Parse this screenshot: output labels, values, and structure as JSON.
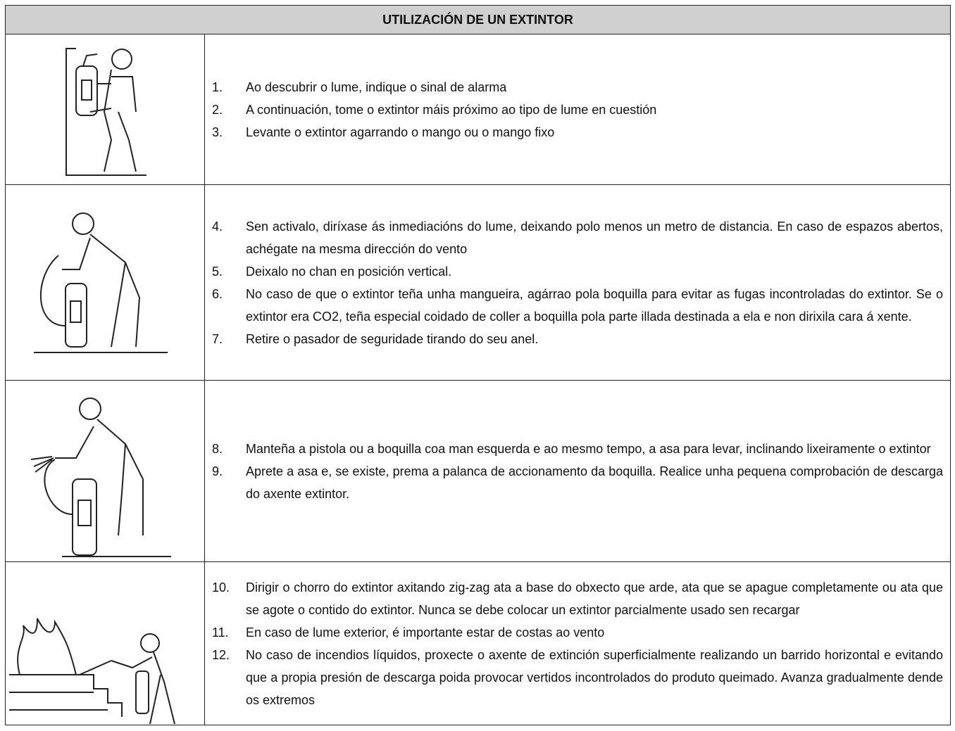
{
  "header": {
    "title": "UTILIZACIÓN DE UN EXTINTOR"
  },
  "rows": [
    {
      "items": [
        {
          "number": "1.",
          "text": "Ao descubrir o lume, indique o sinal de alarma"
        },
        {
          "number": "2.",
          "text": "A continuación, tome o extintor máis próximo ao tipo de lume en cuestión"
        },
        {
          "number": "3.",
          "text": "Levante o extintor agarrando o mango ou o mango fixo"
        }
      ]
    },
    {
      "items": [
        {
          "number": "4.",
          "text": "Sen activalo, diríxase ás inmediacións do lume, deixando polo menos un metro de distancia. En caso de espazos abertos, achégate na mesma dirección do vento"
        },
        {
          "number": "5.",
          "text": "Deixalo no chan en posición vertical."
        },
        {
          "number": "6.",
          "text": "No caso de que o extintor teña unha mangueira, agárrao pola boquilla para evitar as fugas incontroladas do extintor. Se o extintor era CO2, teña especial coidado de coller a boquilla pola parte illada destinada a ela e non dirixila cara á xente."
        },
        {
          "number": "7.",
          "text": "Retire o pasador de seguridade tirando do seu anel."
        }
      ]
    },
    {
      "items": [
        {
          "number": "8.",
          "text": "Manteña a pistola ou a boquilla coa man esquerda e ao mesmo tempo, a asa para levar, inclinando lixeiramente o extintor"
        },
        {
          "number": "9.",
          "text": "Aprete a asa e, se existe, prema a palanca de accionamento da boquilla. Realice unha pequena comprobación de descarga do axente extintor."
        }
      ]
    },
    {
      "items": [
        {
          "number": "10.",
          "text": "Dirigir o chorro do extintor axitando zig-zag ata a base do obxecto que arde, ata que se apague completamente ou ata que se agote o contido do extintor. Nunca se debe colocar un extintor parcialmente usado sen recargar"
        },
        {
          "number": "11.",
          "text": "En caso de lume exterior, é importante estar de costas ao vento"
        },
        {
          "number": "12.",
          "text": "No caso de incendios líquidos, proxecte o axente de extinción superficialmente realizando un barrido horizontal e evitando que a propia presión de descarga poida provocar vertidos incontrolados do produto queimado. Avanza gradualmente dende os extremos"
        }
      ]
    }
  ]
}
